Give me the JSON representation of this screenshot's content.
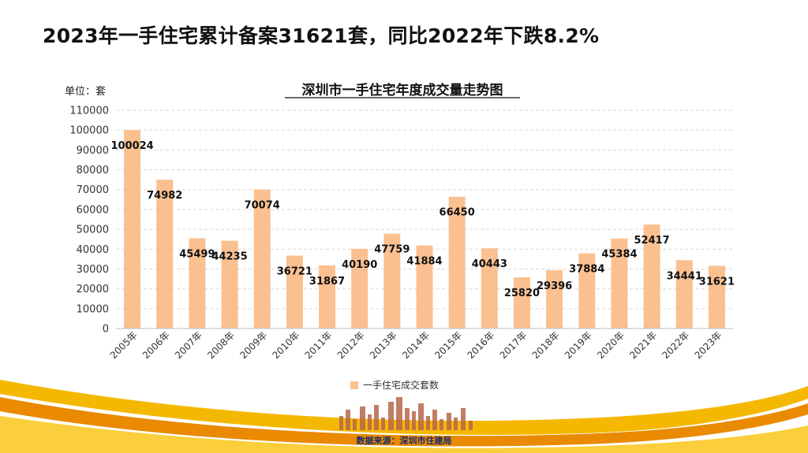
{
  "slide": {
    "title": "2023年一手住宅累计备案31621套，同比2022年下跌8.2%",
    "source": "数据来源：深圳市住建局"
  },
  "colors": {
    "bar": "#fac090",
    "gold": "#f5b800",
    "orange": "#e98a00",
    "source_text": "#1c2a6e"
  },
  "chart_data": {
    "type": "bar",
    "title": "深圳市一手住宅年度成交量走势图",
    "unit_label": "单位：套",
    "categories": [
      "2005年",
      "2006年",
      "2007年",
      "2008年",
      "2009年",
      "2010年",
      "2011年",
      "2012年",
      "2013年",
      "2014年",
      "2015年",
      "2016年",
      "2017年",
      "2018年",
      "2019年",
      "2020年",
      "2021年",
      "2022年",
      "2023年"
    ],
    "series": [
      {
        "name": "一手住宅成交套数",
        "values": [
          100024,
          74982,
          45499,
          44235,
          70074,
          36721,
          31867,
          40190,
          47759,
          41884,
          66450,
          40443,
          25820,
          29396,
          37884,
          45384,
          52417,
          34441,
          31621
        ]
      }
    ],
    "yticks": [
      "0",
      "10000",
      "20000",
      "30000",
      "40000",
      "50000",
      "60000",
      "70000",
      "80000",
      "90000",
      "100000",
      "110000"
    ],
    "ylim": [
      0,
      110000
    ],
    "grid": true,
    "legend": "bottom"
  }
}
